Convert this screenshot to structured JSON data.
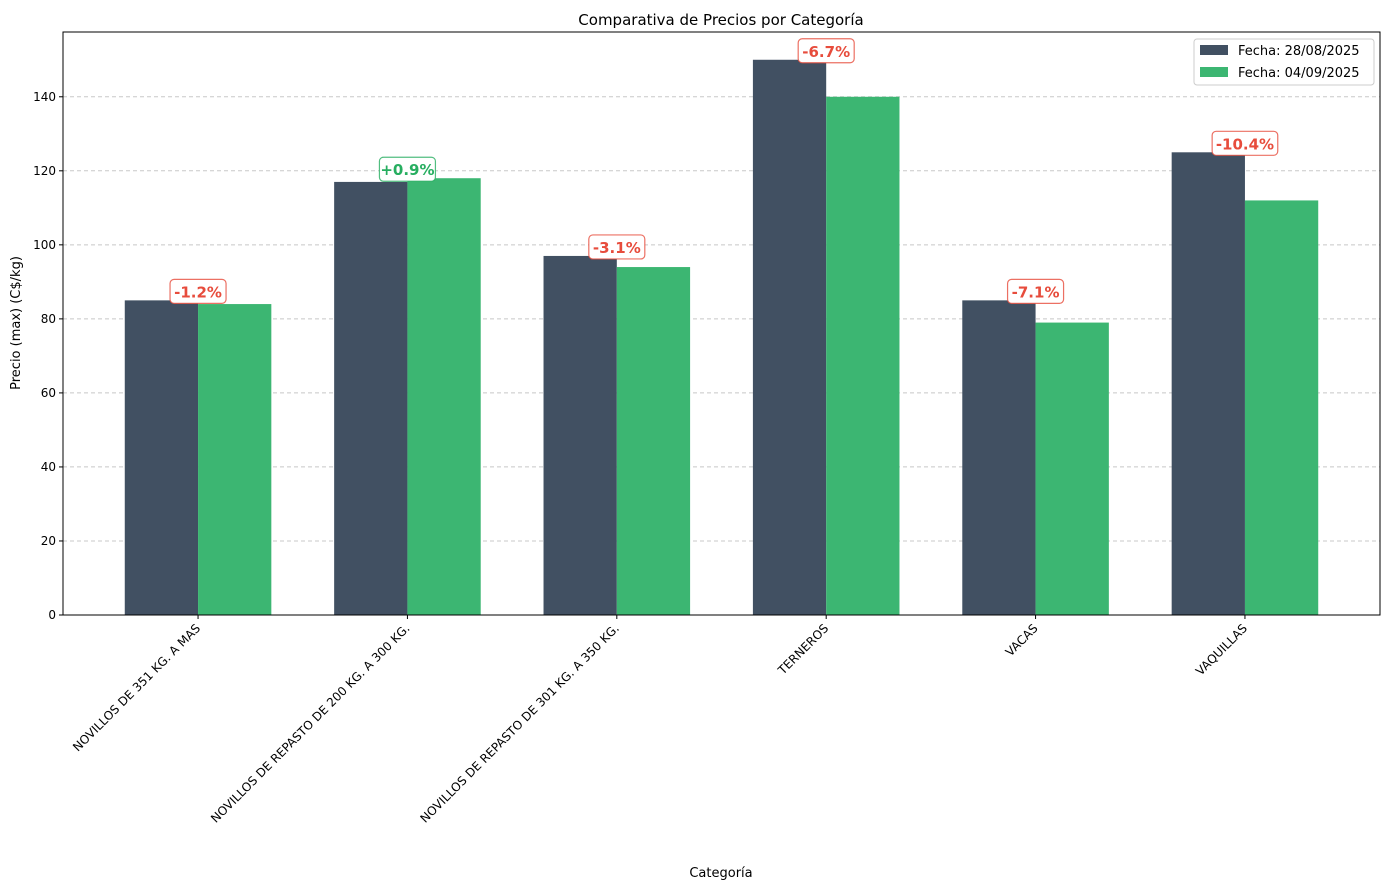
{
  "chart_data": {
    "type": "bar",
    "title": "Comparativa de Precios por Categoría",
    "xlabel": "Categoría",
    "ylabel": "Precio (max) (C$/kg)",
    "ylim": [
      0,
      157.5
    ],
    "yticks": [
      0,
      20,
      40,
      60,
      80,
      100,
      120,
      140
    ],
    "grid": "y-dashed",
    "legend_placement": "top-right",
    "categories": [
      "NOVILLOS DE 351 KG. A MAS",
      "NOVILLOS DE REPASTO DE 200 KG. A 300 KG.",
      "NOVILLOS DE REPASTO DE 301 KG. A 350 KG.",
      "TERNEROS",
      "VACAS",
      "VAQUILLAS"
    ],
    "series": [
      {
        "name": "Fecha: 28/08/2025",
        "color": "#415062",
        "values": [
          85,
          117,
          97,
          150,
          85,
          125
        ]
      },
      {
        "name": "Fecha: 04/09/2025",
        "color": "#3cb672",
        "values": [
          84,
          118,
          94,
          140,
          79,
          112
        ]
      }
    ],
    "annotations": [
      "-1.2%",
      "+0.9%",
      "-3.1%",
      "-6.7%",
      "-7.1%",
      "-10.4%"
    ],
    "annotation_colors": {
      "negative": "#e74c3c",
      "positive": "#27ae60"
    }
  }
}
